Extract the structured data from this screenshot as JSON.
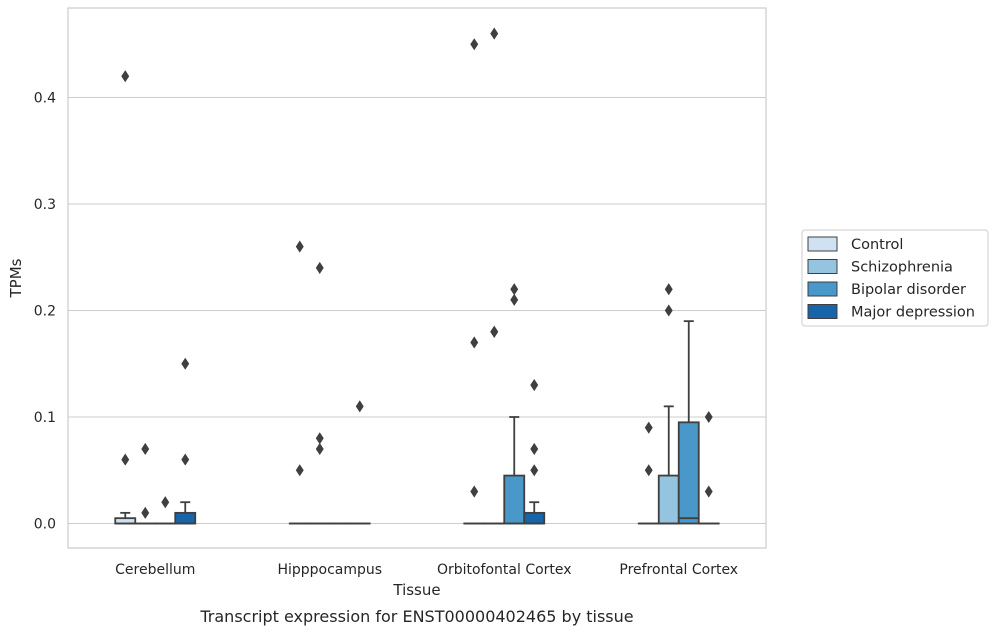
{
  "caption": "Transcript expression for ENST00000402465 by tissue",
  "chart_data": {
    "type": "box",
    "xlabel": "Tissue",
    "ylabel": "TPMs",
    "ylim": [
      -0.022,
      0.483
    ],
    "yticks": [
      0.0,
      0.1,
      0.2,
      0.3,
      0.4
    ],
    "ytick_labels": [
      "0.0",
      "0.1",
      "0.2",
      "0.3",
      "0.4"
    ],
    "grid": "horizontal",
    "legend_position": "right",
    "categories": [
      "Cerebellum",
      "Hipppocampus",
      "Orbitofontal Cortex",
      "Prefrontal Cortex"
    ],
    "series": [
      {
        "name": "Control",
        "color": "#d0e1f2",
        "boxes": [
          {
            "q1": 0.0,
            "median": 0.0,
            "q3": 0.005,
            "whisker_low": 0.0,
            "whisker_high": 0.01,
            "outliers": [
              0.42,
              0.06
            ]
          },
          {
            "q1": 0.0,
            "median": 0.0,
            "q3": 0.0,
            "whisker_low": 0.0,
            "whisker_high": 0.0,
            "outliers": [
              0.26,
              0.05
            ]
          },
          {
            "q1": 0.0,
            "median": 0.0,
            "q3": 0.0,
            "whisker_low": 0.0,
            "whisker_high": 0.0,
            "outliers": [
              0.45,
              0.17,
              0.03
            ]
          },
          {
            "q1": 0.0,
            "median": 0.0,
            "q3": 0.0,
            "whisker_low": 0.0,
            "whisker_high": 0.0,
            "outliers": [
              0.09,
              0.05
            ]
          }
        ]
      },
      {
        "name": "Schizophrenia",
        "color": "#94c4df",
        "boxes": [
          {
            "q1": 0.0,
            "median": 0.0,
            "q3": 0.0,
            "whisker_low": 0.0,
            "whisker_high": 0.0,
            "outliers": [
              0.07,
              0.01
            ]
          },
          {
            "q1": 0.0,
            "median": 0.0,
            "q3": 0.0,
            "whisker_low": 0.0,
            "whisker_high": 0.0,
            "outliers": [
              0.24,
              0.08,
              0.07
            ]
          },
          {
            "q1": 0.0,
            "median": 0.0,
            "q3": 0.0,
            "whisker_low": 0.0,
            "whisker_high": 0.0,
            "outliers": [
              0.46,
              0.18,
              0.18
            ]
          },
          {
            "q1": 0.0,
            "median": 0.0,
            "q3": 0.045,
            "whisker_low": 0.0,
            "whisker_high": 0.11,
            "outliers": [
              0.22,
              0.2
            ]
          }
        ]
      },
      {
        "name": "Bipolar disorder",
        "color": "#4a98c9",
        "boxes": [
          {
            "q1": 0.0,
            "median": 0.0,
            "q3": 0.0,
            "whisker_low": 0.0,
            "whisker_high": 0.0,
            "outliers": [
              0.02
            ]
          },
          {
            "q1": 0.0,
            "median": 0.0,
            "q3": 0.0,
            "whisker_low": 0.0,
            "whisker_high": 0.0,
            "outliers": []
          },
          {
            "q1": 0.0,
            "median": 0.0,
            "q3": 0.045,
            "whisker_low": 0.0,
            "whisker_high": 0.1,
            "outliers": [
              0.22,
              0.21
            ]
          },
          {
            "q1": 0.0,
            "median": 0.005,
            "q3": 0.095,
            "whisker_low": 0.0,
            "whisker_high": 0.19,
            "outliers": []
          }
        ]
      },
      {
        "name": "Major depression",
        "color": "#1764ab",
        "boxes": [
          {
            "q1": 0.0,
            "median": 0.0,
            "q3": 0.01,
            "whisker_low": 0.0,
            "whisker_high": 0.02,
            "outliers": [
              0.15,
              0.06
            ]
          },
          {
            "q1": 0.0,
            "median": 0.0,
            "q3": 0.0,
            "whisker_low": 0.0,
            "whisker_high": 0.0,
            "outliers": [
              0.11
            ]
          },
          {
            "q1": 0.0,
            "median": 0.0,
            "q3": 0.01,
            "whisker_low": 0.0,
            "whisker_high": 0.02,
            "outliers": [
              0.13,
              0.07,
              0.05
            ]
          },
          {
            "q1": 0.0,
            "median": 0.0,
            "q3": 0.0,
            "whisker_low": 0.0,
            "whisker_high": 0.0,
            "outliers": [
              0.1,
              0.03
            ]
          }
        ]
      }
    ]
  }
}
